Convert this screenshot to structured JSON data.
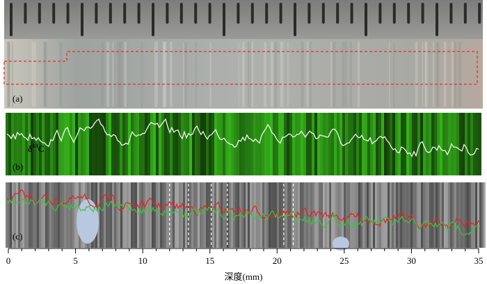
{
  "figure": {
    "panels": [
      {
        "id": "a",
        "label": "(a)",
        "description_label": "",
        "colors": {
          "bg": "#a6a8a5"
        }
      },
      {
        "id": "b",
        "label": "(b)",
        "overlay_label_prefix": "δ",
        "overlay_label_super": "13",
        "overlay_label_suffix": "C"
      },
      {
        "id": "c",
        "label": "(c)"
      }
    ],
    "colors": {
      "scale_bar": "#8c8c8c",
      "scale_notch": "#2a2a2a",
      "box_dashed": "#e03030",
      "panel_b_base": "#1f4f10",
      "panel_b_bright": "#4fbf2e",
      "panel_b_line": "#ffffff",
      "panel_c_base": "#6f6f6f",
      "panel_c_red": "#e82020",
      "panel_c_green": "#3cc43c",
      "panel_c_blue_spot": "#b8c8e0",
      "dashed_markers": "#ffffff"
    },
    "dashed_marker_depths_mm": [
      12.0,
      13.4,
      15.1,
      16.3,
      20.5,
      21.2
    ]
  },
  "chart_data": {
    "type": "line",
    "title": "",
    "xlabel": "深度(mm)",
    "ylabel": "",
    "xlim": [
      0,
      35
    ],
    "x_ticks": [
      0,
      5,
      10,
      15,
      20,
      25,
      30,
      35
    ],
    "x_tick_labels": [
      "0",
      "5",
      "10",
      "15",
      "20",
      "25",
      "30",
      "35"
    ],
    "grid": false
  }
}
